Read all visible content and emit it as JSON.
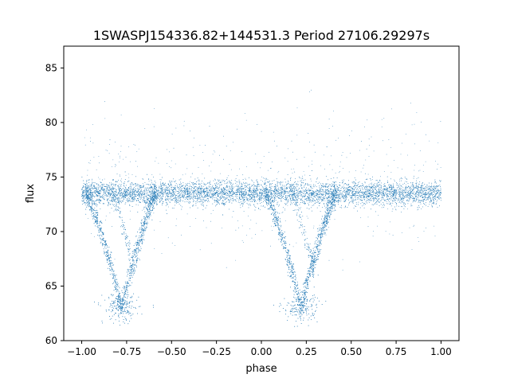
{
  "chart_data": {
    "type": "scatter",
    "title": "1SWASPJ154336.82+144531.3 Period 27106.29297s",
    "xlabel": "phase",
    "ylabel": "flux",
    "xlim": [
      -1.1,
      1.1
    ],
    "ylim": [
      60.0,
      87.0
    ],
    "xticks": [
      -1.0,
      -0.75,
      -0.5,
      -0.25,
      0.0,
      0.25,
      0.5,
      0.75,
      1.0
    ],
    "xtick_labels": [
      "−1.00",
      "−0.75",
      "−0.50",
      "−0.25",
      "0.00",
      "0.25",
      "0.50",
      "0.75",
      "1.00"
    ],
    "yticks": [
      60,
      65,
      70,
      75,
      80,
      85
    ],
    "ytick_labels": [
      "60",
      "65",
      "70",
      "75",
      "80",
      "85"
    ],
    "grid": false,
    "marker_color": "#1f77b4",
    "phase_range": [
      -1.0,
      1.0
    ],
    "baseline_flux": 73.5,
    "primary_minima": [
      {
        "phase": -0.78,
        "flux": 63.0
      },
      {
        "phase": 0.22,
        "flux": 63.0
      }
    ],
    "secondary_features": [
      {
        "phase": -0.72,
        "flux": 66.5
      },
      {
        "phase": 0.28,
        "flux": 66.5
      }
    ]
  }
}
